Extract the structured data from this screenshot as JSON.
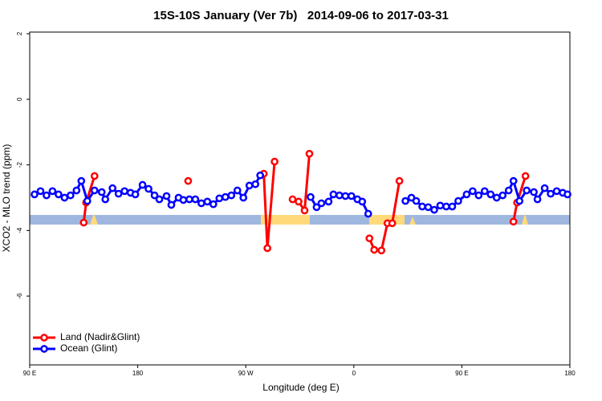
{
  "chart_data": {
    "type": "line",
    "title": "15S-10S January (Ver 7b)   2014-09-06 to 2017-03-31",
    "x_label": "Longitude (deg E)",
    "y_label": "XCO2 - MLO trend (ppm)",
    "xlim": [
      90,
      540
    ],
    "xticks": [
      {
        "value": 90,
        "label": "90 E"
      },
      180,
      {
        "value": 270,
        "label": "90 W"
      },
      {
        "value": 360,
        "label": "0"
      },
      {
        "value": 450,
        "label": "90 E"
      },
      {
        "value": 540,
        "label": "180"
      }
    ],
    "ylim": [
      -8.1,
      2.05
    ],
    "yticks": [
      2,
      0,
      -2,
      -4,
      -6
    ],
    "legend": "bottom-left",
    "series": [
      {
        "name": "Land (Nadir&Glint)",
        "color": "#ff0000",
        "x": [
          135,
          137,
          144,
          150,
          222,
          250,
          285,
          288,
          294,
          300,
          309,
          314,
          319,
          323,
          340,
          373,
          377,
          383,
          388,
          392,
          398,
          420,
          493,
          496,
          503
        ],
        "values": [
          -3.76,
          -3.15,
          -2.34,
          null,
          -2.49,
          null,
          -2.27,
          -4.54,
          -1.9,
          null,
          -3.05,
          -3.12,
          -3.39,
          -1.66,
          null,
          -4.24,
          -4.59,
          -4.61,
          -3.78,
          -3.78,
          -2.49,
          null,
          -3.73,
          -3.15,
          -2.34
        ]
      },
      {
        "name": "Ocean (Glint)",
        "color": "#0000ff",
        "x": [
          94,
          99,
          104,
          109,
          114,
          119,
          124,
          129,
          133,
          138,
          144,
          150,
          153,
          159,
          164,
          169,
          174,
          178,
          184,
          189,
          194,
          198,
          204,
          208,
          214,
          218,
          223,
          228,
          233,
          238,
          243,
          248,
          253,
          258,
          263,
          268,
          273,
          278,
          282,
          320,
          324,
          329,
          333,
          339,
          343,
          348,
          353,
          358,
          363,
          367,
          372,
          390,
          403,
          408,
          412,
          417,
          422,
          427,
          432,
          437,
          442,
          447,
          454,
          459,
          464,
          469,
          474,
          479,
          484,
          489,
          493,
          498,
          504,
          510,
          513,
          519,
          524,
          529,
          534,
          538
        ],
        "values": [
          -2.9,
          -2.8,
          -2.93,
          -2.8,
          -2.9,
          -3.0,
          -2.93,
          -2.78,
          -2.49,
          -3.1,
          -2.78,
          -2.83,
          -3.05,
          -2.71,
          -2.88,
          -2.8,
          -2.85,
          -2.9,
          -2.61,
          -2.73,
          -2.93,
          -3.05,
          -2.95,
          -3.22,
          -3.0,
          -3.07,
          -3.05,
          -3.05,
          -3.17,
          -3.12,
          -3.2,
          -3.02,
          -2.98,
          -2.93,
          -2.78,
          -3.0,
          -2.63,
          -2.59,
          -2.32,
          null,
          -2.98,
          -3.29,
          -3.17,
          -3.12,
          -2.9,
          -2.93,
          -2.95,
          -2.95,
          -3.05,
          -3.12,
          -3.49,
          null,
          -3.1,
          -3.0,
          -3.1,
          -3.27,
          -3.29,
          -3.37,
          -3.24,
          -3.27,
          -3.27,
          -3.1,
          -2.9,
          -2.8,
          -2.93,
          -2.8,
          -2.9,
          -3.0,
          -2.93,
          -2.78,
          -2.49,
          -3.1,
          -2.78,
          -2.83,
          -3.05,
          -2.71,
          -2.88,
          -2.8,
          -2.85,
          -2.9
        ]
      }
    ]
  }
}
